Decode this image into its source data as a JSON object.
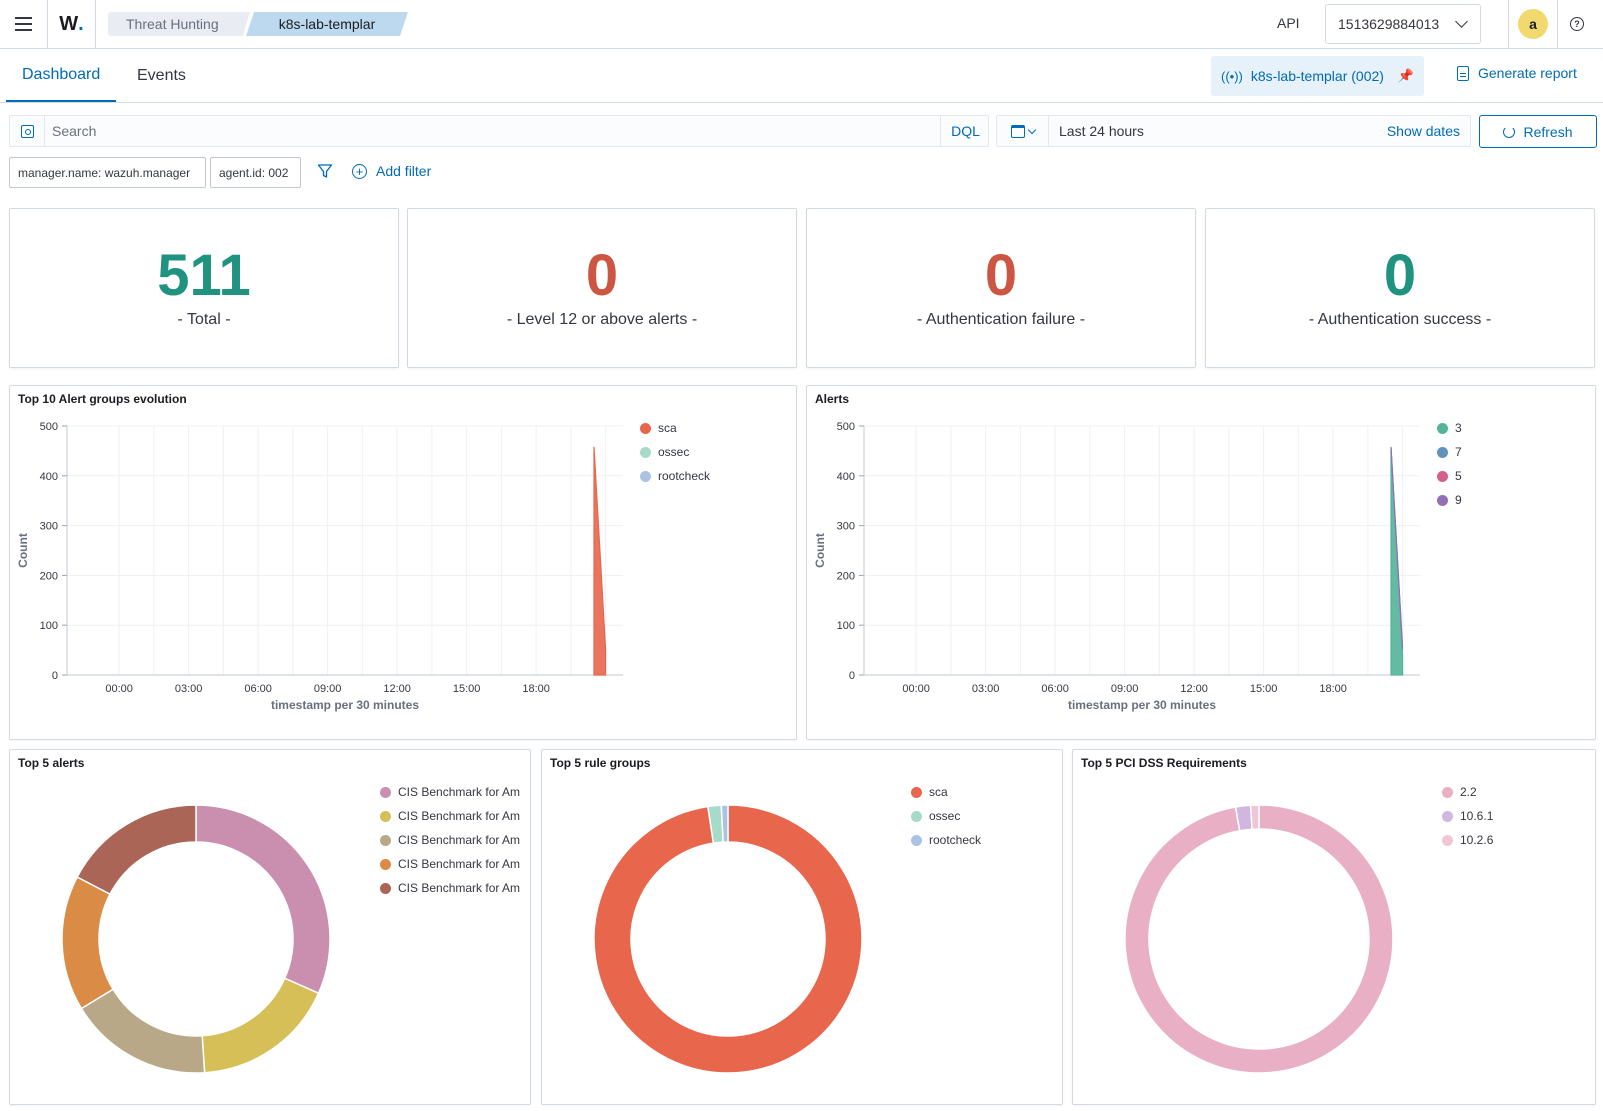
{
  "header": {
    "logo_text": "W",
    "breadcrumbs": [
      "Threat Hunting",
      "k8s-lab-templar"
    ],
    "api_label": "API",
    "api_value": "1513629884013",
    "avatar_letter": "a"
  },
  "tabs": {
    "dashboard": "Dashboard",
    "events": "Events",
    "agent_pill": "k8s-lab-templar (002)",
    "generate_report": "Generate report"
  },
  "search": {
    "placeholder": "Search",
    "dql": "DQL",
    "date_range": "Last 24 hours",
    "show_dates": "Show dates",
    "refresh": "Refresh"
  },
  "filters": {
    "pills": [
      "manager.name: wazuh.manager",
      "agent.id: 002"
    ],
    "add_filter": "Add filter"
  },
  "metrics": [
    {
      "value": "511",
      "label": "- Total -",
      "color": "#209280"
    },
    {
      "value": "0",
      "label": "- Level 12 or above alerts -",
      "color": "#cc5642"
    },
    {
      "value": "0",
      "label": "- Authentication failure -",
      "color": "#cc5642"
    },
    {
      "value": "0",
      "label": "- Authentication success -",
      "color": "#209280"
    }
  ],
  "panels": {
    "evolution_title": "Top 10 Alert groups evolution",
    "alerts_title": "Alerts",
    "top5_alerts_title": "Top 5 alerts",
    "top5_rule_title": "Top 5 rule groups",
    "top5_pci_title": "Top 5 PCI DSS Requirements"
  },
  "chart_data": [
    {
      "type": "area",
      "title": "Top 10 Alert groups evolution",
      "xlabel": "timestamp per 30 minutes",
      "ylabel": "Count",
      "ylim": [
        0,
        500
      ],
      "yticks": [
        0,
        100,
        200,
        300,
        400,
        500
      ],
      "x_ticks": [
        "00:00",
        "03:00",
        "06:00",
        "09:00",
        "12:00",
        "15:00",
        "18:00"
      ],
      "x_range_hours": [
        -2.25,
        21.75
      ],
      "series": [
        {
          "name": "sca",
          "color": "#e7664c",
          "points": [
            [
              20.5,
              0
            ],
            [
              20.5,
              458
            ],
            [
              21.0,
              50
            ],
            [
              21.0,
              0
            ]
          ]
        },
        {
          "name": "ossec",
          "color": "#a6dbc9",
          "points": []
        },
        {
          "name": "rootcheck",
          "color": "#aac3e2",
          "points": []
        }
      ],
      "legend": "right"
    },
    {
      "type": "area",
      "title": "Alerts",
      "xlabel": "timestamp per 30 minutes",
      "ylabel": "Count",
      "ylim": [
        0,
        500
      ],
      "yticks": [
        0,
        100,
        200,
        300,
        400,
        500
      ],
      "x_ticks": [
        "00:00",
        "03:00",
        "06:00",
        "09:00",
        "12:00",
        "15:00",
        "18:00"
      ],
      "x_range_hours": [
        -2.25,
        21.75
      ],
      "series": [
        {
          "name": "3",
          "color": "#54b399",
          "points": [
            [
              20.5,
              0
            ],
            [
              20.5,
              455
            ],
            [
              21.0,
              40
            ],
            [
              21.0,
              0
            ]
          ]
        },
        {
          "name": "7",
          "color": "#6092c0",
          "points": [
            [
              20.5,
              455
            ],
            [
              21.0,
              50
            ]
          ]
        },
        {
          "name": "5",
          "color": "#d36086",
          "points": []
        },
        {
          "name": "9",
          "color": "#9170b8",
          "points": [
            [
              20.5,
              458
            ],
            [
              21.0,
              55
            ]
          ]
        }
      ],
      "legend": "right"
    },
    {
      "type": "pie",
      "title": "Top 5 alerts",
      "labels": [
        "CIS Benchmark for Am",
        "CIS Benchmark for Am",
        "CIS Benchmark for Am",
        "CIS Benchmark for Am",
        "CIS Benchmark for Am"
      ],
      "values": [
        31,
        17,
        17,
        16,
        17
      ],
      "colors": [
        "#ca8eae",
        "#d6bf57",
        "#b9a888",
        "#da8b45",
        "#aa6556"
      ],
      "legend": "right"
    },
    {
      "type": "pie",
      "title": "Top 5 rule groups",
      "labels": [
        "sca",
        "ossec",
        "rootcheck"
      ],
      "values": [
        97.6,
        1.6,
        0.8
      ],
      "colors": [
        "#e7664c",
        "#a6dbc9",
        "#aac3e2"
      ],
      "legend": "right"
    },
    {
      "type": "pie",
      "title": "Top 5 PCI DSS Requirements",
      "labels": [
        "2.2",
        "10.6.1",
        "10.2.6"
      ],
      "values": [
        97.2,
        1.8,
        1.0
      ],
      "colors": [
        "#e9afc4",
        "#d1b7df",
        "#f0c6d6"
      ],
      "legend": "right"
    }
  ]
}
